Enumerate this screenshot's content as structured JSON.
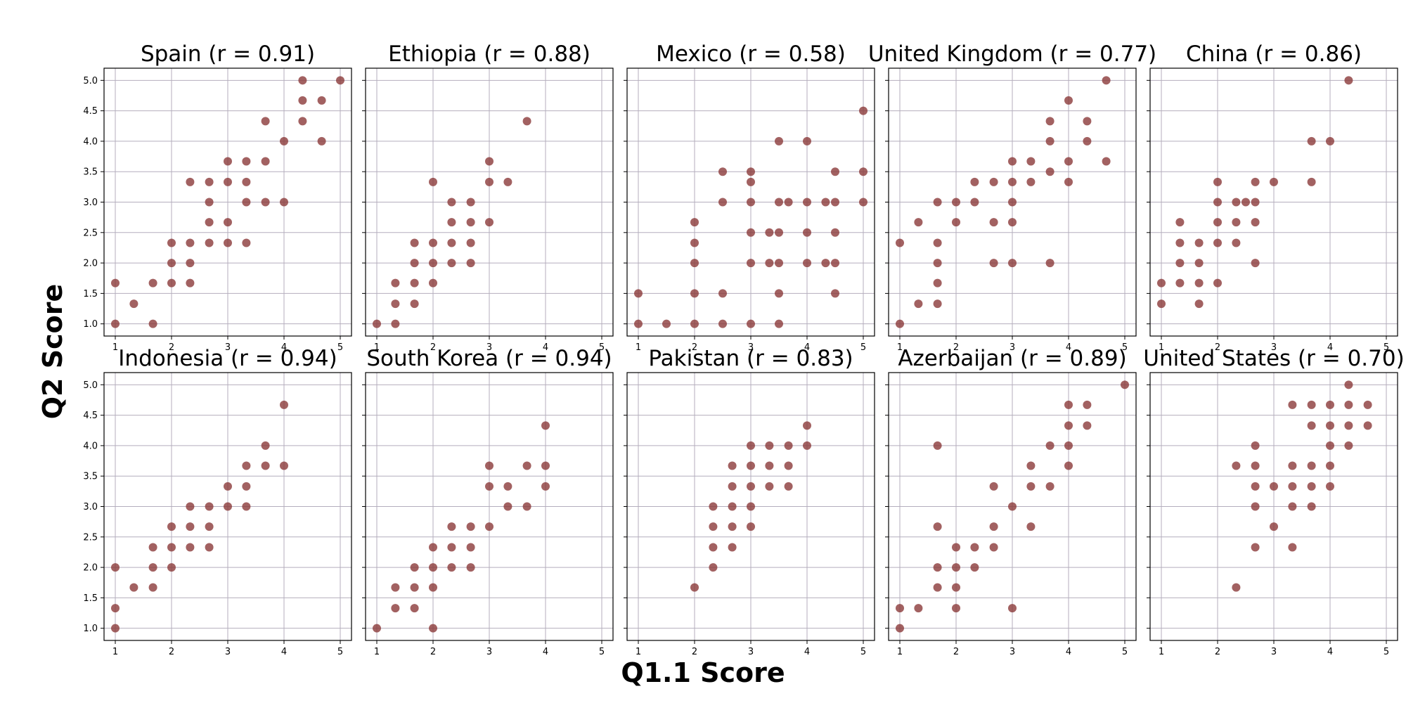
{
  "figure": {
    "xlabel": "Q1.1 Score",
    "ylabel": "Q2 Score"
  },
  "style": {
    "point_color": "#8b3a3a",
    "grid_color": "#b4aebd"
  },
  "chart_data": [
    {
      "type": "scatter",
      "title": "Spain (r = 0.91)",
      "xlim": [
        0.8,
        5.2
      ],
      "ylim": [
        0.8,
        5.2
      ],
      "xticks": [
        "1",
        "2",
        "3",
        "4",
        "5"
      ],
      "yticks": [
        "1.0",
        "1.5",
        "2.0",
        "2.5",
        "3.0",
        "3.5",
        "4.0",
        "4.5",
        "5.0"
      ],
      "grid": true,
      "points": [
        [
          1,
          1.67
        ],
        [
          1,
          1.0
        ],
        [
          1.33,
          1.33
        ],
        [
          1.67,
          1.67
        ],
        [
          1.67,
          1.0
        ],
        [
          2,
          2.33
        ],
        [
          2,
          2.0
        ],
        [
          2,
          1.67
        ],
        [
          2.33,
          3.33
        ],
        [
          2.33,
          2.33
        ],
        [
          2.33,
          2.0
        ],
        [
          2.33,
          1.67
        ],
        [
          2.67,
          3.33
        ],
        [
          2.67,
          3.0
        ],
        [
          2.67,
          2.67
        ],
        [
          2.67,
          2.33
        ],
        [
          3,
          3.67
        ],
        [
          3,
          3.33
        ],
        [
          3,
          2.67
        ],
        [
          3,
          2.33
        ],
        [
          3.33,
          3.67
        ],
        [
          3.33,
          3.33
        ],
        [
          3.33,
          3.0
        ],
        [
          3.33,
          2.33
        ],
        [
          3.67,
          4.33
        ],
        [
          3.67,
          3.67
        ],
        [
          3.67,
          3.0
        ],
        [
          4,
          4.0
        ],
        [
          4,
          3.0
        ],
        [
          4.33,
          5.0
        ],
        [
          4.33,
          4.67
        ],
        [
          4.33,
          4.33
        ],
        [
          4.67,
          4.67
        ],
        [
          4.67,
          4.0
        ],
        [
          5,
          5.0
        ]
      ]
    },
    {
      "type": "scatter",
      "title": "Ethiopia (r = 0.88)",
      "xlim": [
        0.8,
        5.2
      ],
      "ylim": [
        0.8,
        5.2
      ],
      "xticks": [
        "1",
        "2",
        "3",
        "4",
        "5"
      ],
      "yticks": [
        "1.0",
        "1.5",
        "2.0",
        "2.5",
        "3.0",
        "3.5",
        "4.0",
        "4.5",
        "5.0"
      ],
      "grid": true,
      "points": [
        [
          1,
          1.0
        ],
        [
          1.33,
          1.67
        ],
        [
          1.33,
          1.33
        ],
        [
          1.33,
          1.0
        ],
        [
          1.67,
          2.33
        ],
        [
          1.67,
          2.0
        ],
        [
          1.67,
          1.67
        ],
        [
          1.67,
          1.33
        ],
        [
          2,
          3.33
        ],
        [
          2,
          2.33
        ],
        [
          2,
          2.0
        ],
        [
          2,
          1.67
        ],
        [
          2.33,
          3.0
        ],
        [
          2.33,
          2.67
        ],
        [
          2.33,
          2.33
        ],
        [
          2.33,
          2.0
        ],
        [
          2.67,
          3.0
        ],
        [
          2.67,
          2.67
        ],
        [
          2.67,
          2.33
        ],
        [
          2.67,
          2.0
        ],
        [
          3,
          3.67
        ],
        [
          3,
          3.33
        ],
        [
          3,
          2.67
        ],
        [
          3.33,
          3.33
        ],
        [
          3.67,
          4.33
        ]
      ]
    },
    {
      "type": "scatter",
      "title": "Mexico (r = 0.58)",
      "xlim": [
        0.8,
        5.2
      ],
      "ylim": [
        0.8,
        5.2
      ],
      "xticks": [
        "1",
        "2",
        "3",
        "4",
        "5"
      ],
      "yticks": [
        "1.0",
        "1.5",
        "2.0",
        "2.5",
        "3.0",
        "3.5",
        "4.0",
        "4.5",
        "5.0"
      ],
      "grid": true,
      "points": [
        [
          1,
          1.5
        ],
        [
          1,
          1.0
        ],
        [
          1.5,
          1.0
        ],
        [
          2,
          2.67
        ],
        [
          2,
          2.33
        ],
        [
          2,
          2.0
        ],
        [
          2,
          1.5
        ],
        [
          2,
          1.0
        ],
        [
          2.5,
          3.5
        ],
        [
          2.5,
          3.0
        ],
        [
          2.5,
          1.5
        ],
        [
          2.5,
          1.0
        ],
        [
          3,
          3.5
        ],
        [
          3,
          3.33
        ],
        [
          3,
          3.0
        ],
        [
          3,
          2.5
        ],
        [
          3,
          2.0
        ],
        [
          3,
          1.0
        ],
        [
          3.33,
          2.5
        ],
        [
          3.33,
          2.0
        ],
        [
          3.5,
          4.0
        ],
        [
          3.5,
          3.0
        ],
        [
          3.5,
          2.5
        ],
        [
          3.5,
          2.0
        ],
        [
          3.5,
          1.5
        ],
        [
          3.5,
          1.0
        ],
        [
          3.67,
          3.0
        ],
        [
          4,
          4.0
        ],
        [
          4,
          3.0
        ],
        [
          4,
          2.5
        ],
        [
          4,
          2.0
        ],
        [
          4.33,
          3.0
        ],
        [
          4.33,
          2.0
        ],
        [
          4.5,
          3.5
        ],
        [
          4.5,
          3.0
        ],
        [
          4.5,
          2.5
        ],
        [
          4.5,
          2.0
        ],
        [
          4.5,
          1.5
        ],
        [
          5,
          4.5
        ],
        [
          5,
          3.5
        ],
        [
          5,
          3.0
        ]
      ]
    },
    {
      "type": "scatter",
      "title": "United Kingdom (r = 0.77)",
      "xlim": [
        0.8,
        5.2
      ],
      "ylim": [
        0.8,
        5.2
      ],
      "xticks": [
        "1",
        "2",
        "3",
        "4",
        "5"
      ],
      "yticks": [
        "1.0",
        "1.5",
        "2.0",
        "2.5",
        "3.0",
        "3.5",
        "4.0",
        "4.5",
        "5.0"
      ],
      "grid": true,
      "points": [
        [
          1,
          2.33
        ],
        [
          1,
          1.0
        ],
        [
          1.33,
          2.67
        ],
        [
          1.33,
          1.33
        ],
        [
          1.67,
          3.0
        ],
        [
          1.67,
          2.33
        ],
        [
          1.67,
          2.0
        ],
        [
          1.67,
          1.67
        ],
        [
          1.67,
          1.33
        ],
        [
          2,
          3.0
        ],
        [
          2,
          2.67
        ],
        [
          2.33,
          3.33
        ],
        [
          2.33,
          3.0
        ],
        [
          2.67,
          3.33
        ],
        [
          2.67,
          2.67
        ],
        [
          2.67,
          2.0
        ],
        [
          3,
          3.67
        ],
        [
          3,
          3.33
        ],
        [
          3,
          3.0
        ],
        [
          3,
          2.67
        ],
        [
          3,
          2.0
        ],
        [
          3.33,
          3.67
        ],
        [
          3.33,
          3.33
        ],
        [
          3.67,
          4.33
        ],
        [
          3.67,
          4.0
        ],
        [
          3.67,
          3.5
        ],
        [
          3.67,
          2.0
        ],
        [
          4,
          4.67
        ],
        [
          4,
          3.67
        ],
        [
          4,
          3.33
        ],
        [
          4.33,
          4.33
        ],
        [
          4.33,
          4.0
        ],
        [
          4.67,
          5.0
        ],
        [
          4.67,
          3.67
        ]
      ]
    },
    {
      "type": "scatter",
      "title": "China (r = 0.86)",
      "xlim": [
        0.8,
        5.2
      ],
      "ylim": [
        0.8,
        5.2
      ],
      "xticks": [
        "1",
        "2",
        "3",
        "4",
        "5"
      ],
      "yticks": [
        "1.0",
        "1.5",
        "2.0",
        "2.5",
        "3.0",
        "3.5",
        "4.0",
        "4.5",
        "5.0"
      ],
      "grid": true,
      "points": [
        [
          1,
          1.67
        ],
        [
          1,
          1.33
        ],
        [
          1.33,
          2.67
        ],
        [
          1.33,
          2.33
        ],
        [
          1.33,
          2.0
        ],
        [
          1.33,
          1.67
        ],
        [
          1.67,
          2.33
        ],
        [
          1.67,
          2.0
        ],
        [
          1.67,
          1.67
        ],
        [
          1.67,
          1.33
        ],
        [
          2,
          3.33
        ],
        [
          2,
          3.0
        ],
        [
          2,
          2.67
        ],
        [
          2,
          2.33
        ],
        [
          2,
          1.67
        ],
        [
          2.33,
          3.0
        ],
        [
          2.33,
          2.67
        ],
        [
          2.33,
          2.33
        ],
        [
          2.5,
          3.0
        ],
        [
          2.67,
          3.33
        ],
        [
          2.67,
          3.0
        ],
        [
          2.67,
          2.67
        ],
        [
          2.67,
          2.0
        ],
        [
          3,
          3.33
        ],
        [
          3.67,
          4.0
        ],
        [
          3.67,
          3.33
        ],
        [
          4,
          4.0
        ],
        [
          4.33,
          5.0
        ]
      ]
    },
    {
      "type": "scatter",
      "title": "Indonesia (r = 0.94)",
      "xlim": [
        0.8,
        5.2
      ],
      "ylim": [
        0.8,
        5.2
      ],
      "xticks": [
        "1",
        "2",
        "3",
        "4",
        "5"
      ],
      "yticks": [
        "1.0",
        "1.5",
        "2.0",
        "2.5",
        "3.0",
        "3.5",
        "4.0",
        "4.5",
        "5.0"
      ],
      "grid": true,
      "points": [
        [
          1,
          2.0
        ],
        [
          1,
          1.33
        ],
        [
          1,
          1.0
        ],
        [
          1.33,
          1.67
        ],
        [
          1.67,
          2.33
        ],
        [
          1.67,
          2.0
        ],
        [
          1.67,
          1.67
        ],
        [
          2,
          2.67
        ],
        [
          2,
          2.33
        ],
        [
          2,
          2.0
        ],
        [
          2.33,
          3.0
        ],
        [
          2.33,
          2.67
        ],
        [
          2.33,
          2.33
        ],
        [
          2.67,
          3.0
        ],
        [
          2.67,
          2.67
        ],
        [
          2.67,
          2.33
        ],
        [
          3,
          3.33
        ],
        [
          3,
          3.0
        ],
        [
          3.33,
          3.67
        ],
        [
          3.33,
          3.33
        ],
        [
          3.33,
          3.0
        ],
        [
          3.67,
          4.0
        ],
        [
          3.67,
          3.67
        ],
        [
          4,
          4.67
        ],
        [
          4,
          3.67
        ]
      ]
    },
    {
      "type": "scatter",
      "title": "South Korea (r = 0.94)",
      "xlim": [
        0.8,
        5.2
      ],
      "ylim": [
        0.8,
        5.2
      ],
      "xticks": [
        "1",
        "2",
        "3",
        "4",
        "5"
      ],
      "yticks": [
        "1.0",
        "1.5",
        "2.0",
        "2.5",
        "3.0",
        "3.5",
        "4.0",
        "4.5",
        "5.0"
      ],
      "grid": true,
      "points": [
        [
          1,
          1.0
        ],
        [
          1.33,
          1.67
        ],
        [
          1.33,
          1.33
        ],
        [
          1.67,
          2.0
        ],
        [
          1.67,
          1.67
        ],
        [
          1.67,
          1.33
        ],
        [
          2,
          2.33
        ],
        [
          2,
          2.0
        ],
        [
          2,
          1.67
        ],
        [
          2,
          1.0
        ],
        [
          2.33,
          2.67
        ],
        [
          2.33,
          2.33
        ],
        [
          2.33,
          2.0
        ],
        [
          2.67,
          2.67
        ],
        [
          2.67,
          2.33
        ],
        [
          2.67,
          2.0
        ],
        [
          3,
          3.67
        ],
        [
          3,
          3.33
        ],
        [
          3,
          2.67
        ],
        [
          3.33,
          3.33
        ],
        [
          3.33,
          3.0
        ],
        [
          3.67,
          3.67
        ],
        [
          3.67,
          3.0
        ],
        [
          4,
          4.33
        ],
        [
          4,
          3.67
        ],
        [
          4,
          3.33
        ]
      ]
    },
    {
      "type": "scatter",
      "title": "Pakistan (r = 0.83)",
      "xlim": [
        0.8,
        5.2
      ],
      "ylim": [
        0.8,
        5.2
      ],
      "xticks": [
        "1",
        "2",
        "3",
        "4",
        "5"
      ],
      "yticks": [
        "1.0",
        "1.5",
        "2.0",
        "2.5",
        "3.0",
        "3.5",
        "4.0",
        "4.5",
        "5.0"
      ],
      "grid": true,
      "points": [
        [
          2,
          1.67
        ],
        [
          2.33,
          3.0
        ],
        [
          2.33,
          2.67
        ],
        [
          2.33,
          2.33
        ],
        [
          2.33,
          2.0
        ],
        [
          2.67,
          3.67
        ],
        [
          2.67,
          3.33
        ],
        [
          2.67,
          3.0
        ],
        [
          2.67,
          2.67
        ],
        [
          2.67,
          2.33
        ],
        [
          3,
          4.0
        ],
        [
          3,
          3.67
        ],
        [
          3,
          3.33
        ],
        [
          3,
          3.0
        ],
        [
          3,
          2.67
        ],
        [
          3.33,
          4.0
        ],
        [
          3.33,
          3.67
        ],
        [
          3.33,
          3.33
        ],
        [
          3.67,
          4.0
        ],
        [
          3.67,
          3.67
        ],
        [
          3.67,
          3.33
        ],
        [
          4,
          4.33
        ],
        [
          4,
          4.0
        ]
      ]
    },
    {
      "type": "scatter",
      "title": "Azerbaijan (r = 0.89)",
      "xlim": [
        0.8,
        5.2
      ],
      "ylim": [
        0.8,
        5.2
      ],
      "xticks": [
        "1",
        "2",
        "3",
        "4",
        "5"
      ],
      "yticks": [
        "1.0",
        "1.5",
        "2.0",
        "2.5",
        "3.0",
        "3.5",
        "4.0",
        "4.5",
        "5.0"
      ],
      "grid": true,
      "points": [
        [
          1,
          1.33
        ],
        [
          1,
          1.0
        ],
        [
          1.33,
          1.33
        ],
        [
          1.67,
          4.0
        ],
        [
          1.67,
          2.67
        ],
        [
          1.67,
          2.0
        ],
        [
          1.67,
          1.67
        ],
        [
          2,
          2.33
        ],
        [
          2,
          2.0
        ],
        [
          2,
          1.67
        ],
        [
          2,
          1.33
        ],
        [
          2.33,
          2.33
        ],
        [
          2.33,
          2.0
        ],
        [
          2.67,
          3.33
        ],
        [
          2.67,
          2.67
        ],
        [
          2.67,
          2.33
        ],
        [
          3,
          3.0
        ],
        [
          3,
          1.33
        ],
        [
          3.33,
          3.67
        ],
        [
          3.33,
          3.33
        ],
        [
          3.33,
          2.67
        ],
        [
          3.67,
          4.0
        ],
        [
          3.67,
          3.33
        ],
        [
          4,
          4.67
        ],
        [
          4,
          4.33
        ],
        [
          4,
          4.0
        ],
        [
          4,
          3.67
        ],
        [
          4.33,
          4.67
        ],
        [
          4.33,
          4.33
        ],
        [
          5,
          5.0
        ]
      ]
    },
    {
      "type": "scatter",
      "title": "United States (r = 0.70)",
      "xlim": [
        0.8,
        5.2
      ],
      "ylim": [
        0.8,
        5.2
      ],
      "xticks": [
        "1",
        "2",
        "3",
        "4",
        "5"
      ],
      "yticks": [
        "1.0",
        "1.5",
        "2.0",
        "2.5",
        "3.0",
        "3.5",
        "4.0",
        "4.5",
        "5.0"
      ],
      "grid": true,
      "points": [
        [
          2.33,
          3.67
        ],
        [
          2.33,
          1.67
        ],
        [
          2.67,
          4.0
        ],
        [
          2.67,
          3.67
        ],
        [
          2.67,
          3.33
        ],
        [
          2.67,
          3.0
        ],
        [
          2.67,
          2.33
        ],
        [
          3,
          3.33
        ],
        [
          3,
          2.67
        ],
        [
          3.33,
          4.67
        ],
        [
          3.33,
          3.67
        ],
        [
          3.33,
          3.33
        ],
        [
          3.33,
          3.0
        ],
        [
          3.33,
          2.33
        ],
        [
          3.67,
          4.67
        ],
        [
          3.67,
          4.33
        ],
        [
          3.67,
          3.67
        ],
        [
          3.67,
          3.33
        ],
        [
          3.67,
          3.0
        ],
        [
          4,
          4.67
        ],
        [
          4,
          4.33
        ],
        [
          4,
          4.0
        ],
        [
          4,
          3.67
        ],
        [
          4,
          3.33
        ],
        [
          4.33,
          5.0
        ],
        [
          4.33,
          4.67
        ],
        [
          4.33,
          4.33
        ],
        [
          4.33,
          4.0
        ],
        [
          4.67,
          4.67
        ],
        [
          4.67,
          4.33
        ]
      ]
    }
  ]
}
